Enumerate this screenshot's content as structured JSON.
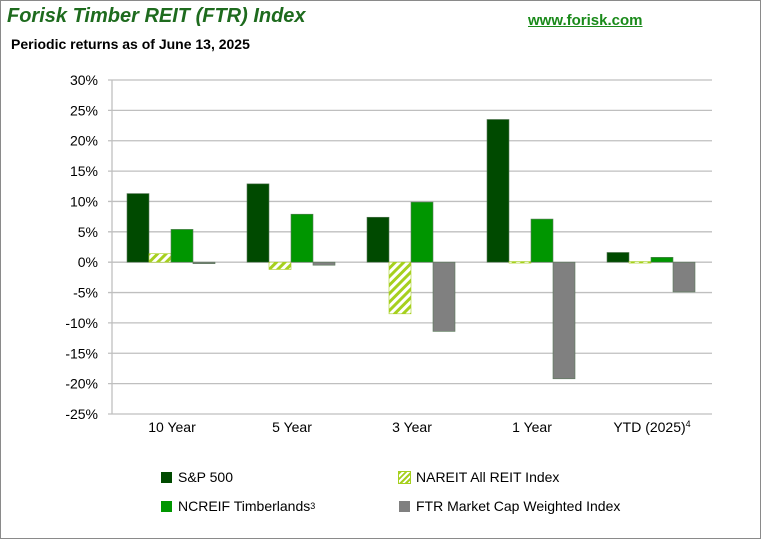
{
  "header": {
    "title": "Forisk Timber REIT (FTR) Index",
    "subtitle": "Periodic returns as of  June 13, 2025",
    "website": "www.forisk.com"
  },
  "chart_data": {
    "type": "bar",
    "categories": [
      "10 Year",
      "5 Year",
      "3 Year",
      "1 Year",
      "YTD (2025)"
    ],
    "category_superscripts": [
      "",
      "",
      "",
      "",
      "4"
    ],
    "ylim": [
      -25,
      30
    ],
    "yticks": [
      -25,
      -20,
      -15,
      -10,
      -5,
      0,
      5,
      10,
      15,
      20,
      25,
      30
    ],
    "ytick_labels": [
      "-25%",
      "-20%",
      "-15%",
      "-10%",
      "-5%",
      "0%",
      "5%",
      "10%",
      "15%",
      "20%",
      "25%",
      "30%"
    ],
    "grid": true,
    "legend_placement": "bottom",
    "series": [
      {
        "name": "S&P 500",
        "sup": "",
        "color": "#004a00",
        "values": [
          11.3,
          12.9,
          7.4,
          23.5,
          1.6
        ]
      },
      {
        "name": "NAREIT All REIT Index",
        "sup": "",
        "color": "#a6d01e",
        "pattern": "hatch",
        "values": [
          1.4,
          -1.2,
          -8.5,
          0.1,
          0.1
        ]
      },
      {
        "name": "NCREIF Timberlands",
        "sup": "3",
        "color": "#009600",
        "values": [
          5.4,
          7.9,
          9.9,
          7.1,
          0.8
        ]
      },
      {
        "name": "FTR Market Cap Weighted Index",
        "sup": "",
        "color": "#808080",
        "values": [
          -0.2,
          -0.5,
          -11.4,
          -19.2,
          -4.9
        ]
      }
    ]
  }
}
